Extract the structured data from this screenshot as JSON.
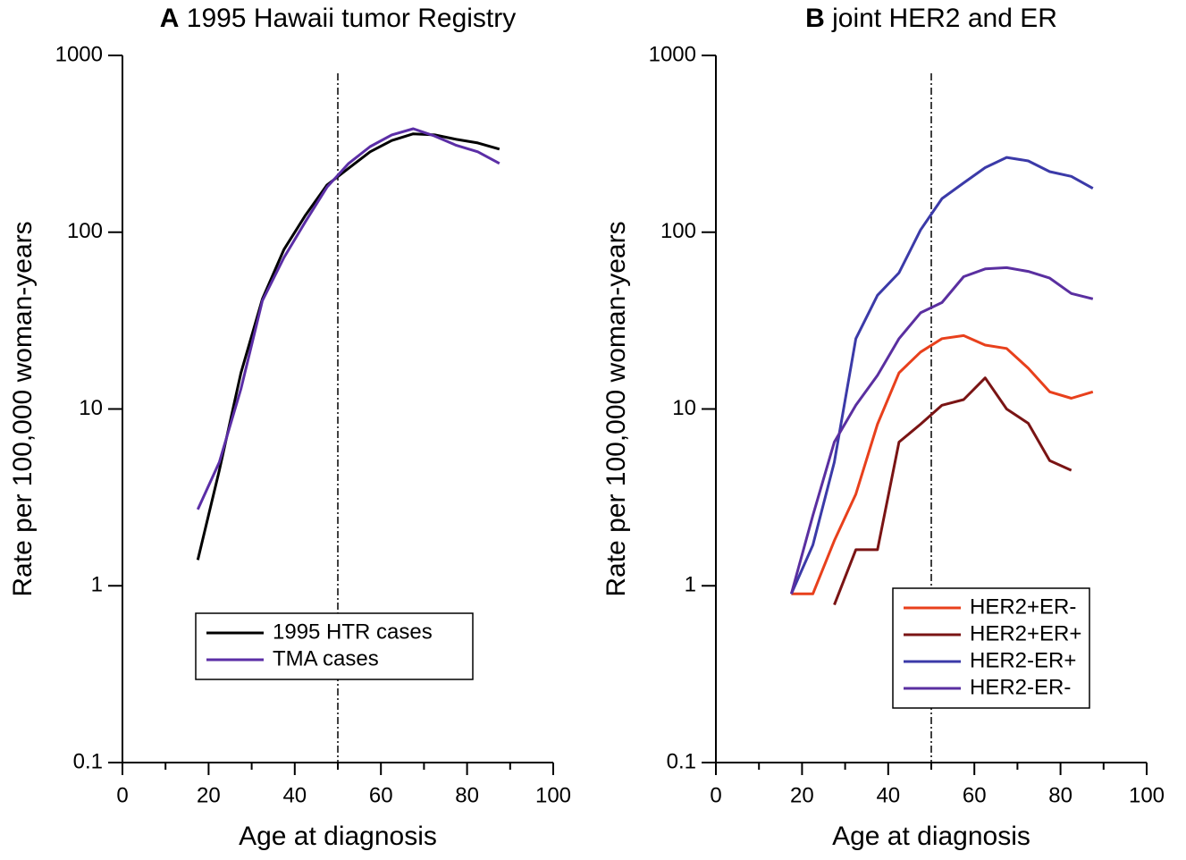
{
  "chart_data": [
    {
      "type": "line",
      "panel_label": "A",
      "title": "1995 Hawaii tumor Registry",
      "xlabel": "Age at diagnosis",
      "ylabel": "Rate per 100,000 woman-years",
      "x": [
        17.5,
        22.5,
        27.5,
        32.5,
        37.5,
        42.5,
        47.5,
        52.5,
        57.5,
        62.5,
        67.5,
        72.5,
        77.5,
        82.5,
        87.5
      ],
      "series": [
        {
          "name": "1995 HTR cases",
          "color": "#000000",
          "values": [
            1.4,
            4.5,
            16,
            42,
            80,
            125,
            185,
            230,
            285,
            330,
            360,
            355,
            335,
            320,
            295
          ]
        },
        {
          "name": "TMA cases",
          "color": "#5b2ea6",
          "values": [
            2.7,
            5,
            13,
            41,
            72,
            115,
            180,
            245,
            305,
            355,
            385,
            350,
            310,
            285,
            245
          ]
        }
      ],
      "xlim": [
        0,
        100
      ],
      "xticks": [
        0,
        20,
        40,
        60,
        80,
        100
      ],
      "xminorticks": [
        10,
        30,
        50,
        70,
        90
      ],
      "ylim": [
        0.1,
        1000
      ],
      "yticks": [
        0.1,
        1,
        10,
        100,
        1000
      ],
      "yscale": "log",
      "vline": 50,
      "legend": "lower center"
    },
    {
      "type": "line",
      "panel_label": "B",
      "title": "joint HER2 and ER",
      "xlabel": "Age at diagnosis",
      "ylabel": "Rate per 100,000 woman-years",
      "x": [
        17.5,
        22.5,
        27.5,
        32.5,
        37.5,
        42.5,
        47.5,
        52.5,
        57.5,
        62.5,
        67.5,
        72.5,
        77.5,
        82.5,
        87.5
      ],
      "series": [
        {
          "name": "HER2+ER-",
          "color": "#e8401c",
          "values": [
            0.9,
            0.9,
            1.8,
            3.3,
            8.2,
            16,
            21,
            25,
            26,
            23,
            22,
            17,
            12.5,
            11.5,
            12.5
          ]
        },
        {
          "name": "HER2+ER+",
          "color": "#7a1414",
          "values": [
            null,
            null,
            0.78,
            1.6,
            1.6,
            6.5,
            8.2,
            10.5,
            11.3,
            15,
            10,
            8.3,
            5.1,
            4.5,
            null
          ]
        },
        {
          "name": "HER2-ER+",
          "color": "#3b3aa8",
          "values": [
            0.9,
            1.7,
            5,
            25,
            44,
            59,
            103,
            155,
            190,
            232,
            265,
            253,
            220,
            207,
            177
          ]
        },
        {
          "name": "HER2-ER-",
          "color": "#5a2fa0",
          "values": [
            0.9,
            2.5,
            6.5,
            10.5,
            15.5,
            25,
            35,
            40,
            56,
            62,
            63,
            60,
            55,
            45,
            42
          ]
        }
      ],
      "xlim": [
        0,
        100
      ],
      "xticks": [
        0,
        20,
        40,
        60,
        80,
        100
      ],
      "xminorticks": [
        10,
        30,
        50,
        70,
        90
      ],
      "ylim": [
        0.1,
        1000
      ],
      "yticks": [
        0.1,
        1,
        10,
        100,
        1000
      ],
      "yscale": "log",
      "vline": 50,
      "legend": "lower right"
    }
  ]
}
